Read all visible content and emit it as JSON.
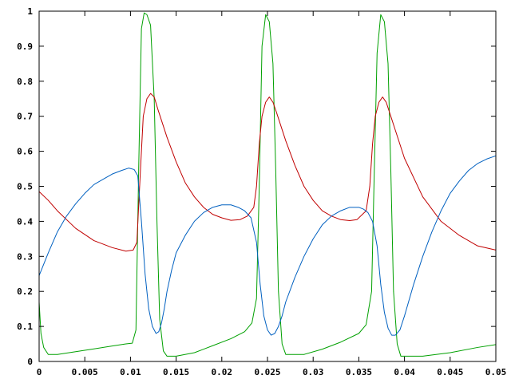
{
  "chart_data": {
    "type": "line",
    "title": "",
    "xlabel": "",
    "ylabel": "",
    "xlim": [
      0,
      0.05
    ],
    "ylim": [
      0,
      1
    ],
    "grid": false,
    "legend": "none",
    "x_ticks": [
      "0",
      "0.005",
      "0.01",
      "0.015",
      "0.02",
      "0.025",
      "0.03",
      "0.035",
      "0.04",
      "0.045",
      "0.05"
    ],
    "y_ticks": [
      "0",
      "0.1",
      "0.2",
      "0.3",
      "0.4",
      "0.5",
      "0.6",
      "0.7",
      "0.8",
      "0.9",
      "1"
    ],
    "series": [
      {
        "color": "#00a000",
        "x": [
          0,
          0.0002,
          0.0005,
          0.001,
          0.002,
          0.004,
          0.006,
          0.008,
          0.0095,
          0.0102,
          0.0106,
          0.0109,
          0.0112,
          0.0115,
          0.0118,
          0.0122,
          0.0126,
          0.0129,
          0.0132,
          0.0136,
          0.014,
          0.015,
          0.017,
          0.019,
          0.021,
          0.0225,
          0.0233,
          0.0238,
          0.0241,
          0.0244,
          0.0248,
          0.0252,
          0.0256,
          0.0259,
          0.0262,
          0.0266,
          0.027,
          0.029,
          0.031,
          0.033,
          0.035,
          0.0358,
          0.0364,
          0.0367,
          0.037,
          0.0374,
          0.0378,
          0.0382,
          0.0385,
          0.0388,
          0.0392,
          0.0396,
          0.042,
          0.045,
          0.048,
          0.05
        ],
        "y": [
          0.17,
          0.08,
          0.04,
          0.02,
          0.02,
          0.028,
          0.036,
          0.044,
          0.05,
          0.052,
          0.09,
          0.55,
          0.95,
          0.995,
          0.99,
          0.96,
          0.75,
          0.4,
          0.12,
          0.03,
          0.015,
          0.015,
          0.025,
          0.045,
          0.065,
          0.085,
          0.11,
          0.18,
          0.5,
          0.9,
          0.99,
          0.97,
          0.85,
          0.55,
          0.2,
          0.05,
          0.02,
          0.02,
          0.035,
          0.055,
          0.08,
          0.105,
          0.2,
          0.55,
          0.88,
          0.99,
          0.97,
          0.85,
          0.55,
          0.2,
          0.05,
          0.015,
          0.015,
          0.025,
          0.04,
          0.048
        ]
      },
      {
        "color": "#c00000",
        "x": [
          0,
          0.001,
          0.002,
          0.004,
          0.006,
          0.008,
          0.0095,
          0.0103,
          0.0107,
          0.0111,
          0.0114,
          0.0118,
          0.0122,
          0.0126,
          0.013,
          0.014,
          0.015,
          0.016,
          0.017,
          0.018,
          0.019,
          0.02,
          0.021,
          0.022,
          0.0228,
          0.0235,
          0.0238,
          0.0241,
          0.0244,
          0.0248,
          0.0252,
          0.0256,
          0.026,
          0.027,
          0.028,
          0.029,
          0.03,
          0.031,
          0.032,
          0.033,
          0.034,
          0.0348,
          0.0358,
          0.0362,
          0.0365,
          0.0368,
          0.0372,
          0.0376,
          0.038,
          0.0385,
          0.039,
          0.04,
          0.042,
          0.044,
          0.046,
          0.048,
          0.05
        ],
        "y": [
          0.485,
          0.46,
          0.43,
          0.38,
          0.345,
          0.325,
          0.315,
          0.318,
          0.34,
          0.55,
          0.7,
          0.75,
          0.765,
          0.755,
          0.72,
          0.64,
          0.57,
          0.51,
          0.47,
          0.44,
          0.42,
          0.41,
          0.403,
          0.405,
          0.415,
          0.44,
          0.5,
          0.62,
          0.7,
          0.74,
          0.755,
          0.74,
          0.71,
          0.63,
          0.56,
          0.5,
          0.46,
          0.43,
          0.415,
          0.405,
          0.402,
          0.405,
          0.43,
          0.5,
          0.62,
          0.7,
          0.74,
          0.755,
          0.74,
          0.7,
          0.66,
          0.58,
          0.47,
          0.4,
          0.36,
          0.33,
          0.318
        ]
      },
      {
        "color": "#0060c0",
        "x": [
          0,
          0.001,
          0.002,
          0.003,
          0.004,
          0.005,
          0.006,
          0.007,
          0.008,
          0.009,
          0.0098,
          0.0104,
          0.0108,
          0.0112,
          0.0116,
          0.012,
          0.0124,
          0.0128,
          0.0131,
          0.0134,
          0.0137,
          0.014,
          0.0145,
          0.015,
          0.016,
          0.017,
          0.018,
          0.019,
          0.02,
          0.021,
          0.0218,
          0.0225,
          0.0232,
          0.0238,
          0.0242,
          0.0246,
          0.025,
          0.0254,
          0.0258,
          0.0262,
          0.0266,
          0.027,
          0.028,
          0.029,
          0.03,
          0.031,
          0.032,
          0.033,
          0.034,
          0.035,
          0.0355,
          0.036,
          0.0365,
          0.037,
          0.0374,
          0.0378,
          0.0382,
          0.0386,
          0.039,
          0.0395,
          0.04,
          0.041,
          0.042,
          0.043,
          0.044,
          0.045,
          0.046,
          0.047,
          0.048,
          0.049,
          0.05
        ],
        "y": [
          0.245,
          0.31,
          0.37,
          0.415,
          0.45,
          0.48,
          0.505,
          0.52,
          0.535,
          0.545,
          0.552,
          0.548,
          0.53,
          0.4,
          0.25,
          0.15,
          0.1,
          0.08,
          0.085,
          0.11,
          0.15,
          0.2,
          0.26,
          0.31,
          0.36,
          0.4,
          0.425,
          0.44,
          0.447,
          0.447,
          0.44,
          0.43,
          0.41,
          0.34,
          0.22,
          0.13,
          0.09,
          0.075,
          0.08,
          0.1,
          0.13,
          0.17,
          0.24,
          0.3,
          0.35,
          0.39,
          0.415,
          0.43,
          0.44,
          0.44,
          0.435,
          0.425,
          0.4,
          0.33,
          0.22,
          0.14,
          0.095,
          0.075,
          0.075,
          0.09,
          0.13,
          0.22,
          0.3,
          0.37,
          0.43,
          0.48,
          0.515,
          0.545,
          0.565,
          0.578,
          0.587
        ]
      }
    ]
  }
}
